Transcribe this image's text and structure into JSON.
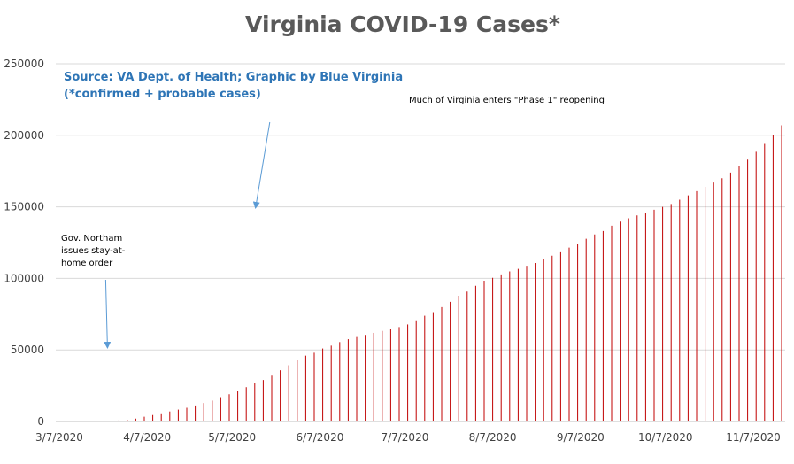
{
  "chart_data": {
    "type": "bar",
    "title": "Virginia COVID-19 Cases*",
    "source_lines": [
      "Source: VA Dept. of Health; Graphic by Blue Virginia",
      "(*confirmed + probable cases)"
    ],
    "xlabel": "",
    "ylabel": "",
    "ylim": [
      0,
      250000
    ],
    "y_ticks": [
      0,
      50000,
      100000,
      150000,
      200000,
      250000
    ],
    "y_tick_labels": [
      "0",
      "50000",
      "100000",
      "150000",
      "200000",
      "250000"
    ],
    "x_range": [
      "2020-03-07",
      "2020-11-17"
    ],
    "x_tick_labels": [
      "3/7/2020",
      "4/7/2020",
      "5/7/2020",
      "6/7/2020",
      "7/7/2020",
      "8/7/2020",
      "9/7/2020",
      "10/7/2020",
      "11/7/2020"
    ],
    "grid": true,
    "bar_color": "#c00000",
    "series": [
      {
        "x": [
          "2020-03-07",
          "2020-03-10",
          "2020-03-13",
          "2020-03-16",
          "2020-03-19",
          "2020-03-22",
          "2020-03-25",
          "2020-03-28",
          "2020-03-31",
          "2020-04-03",
          "2020-04-06",
          "2020-04-09",
          "2020-04-12",
          "2020-04-15",
          "2020-04-18",
          "2020-04-21",
          "2020-04-24",
          "2020-04-27",
          "2020-04-30",
          "2020-05-03",
          "2020-05-06",
          "2020-05-09",
          "2020-05-12",
          "2020-05-15",
          "2020-05-18",
          "2020-05-21",
          "2020-05-24",
          "2020-05-27",
          "2020-05-30",
          "2020-06-02",
          "2020-06-05",
          "2020-06-08",
          "2020-06-11",
          "2020-06-14",
          "2020-06-17",
          "2020-06-20",
          "2020-06-23",
          "2020-06-26",
          "2020-06-29",
          "2020-07-02",
          "2020-07-05",
          "2020-07-08",
          "2020-07-11",
          "2020-07-14",
          "2020-07-17",
          "2020-07-20",
          "2020-07-23",
          "2020-07-26",
          "2020-07-29",
          "2020-08-01",
          "2020-08-04",
          "2020-08-07",
          "2020-08-10",
          "2020-08-13",
          "2020-08-16",
          "2020-08-19",
          "2020-08-22",
          "2020-08-25",
          "2020-08-28",
          "2020-08-31",
          "2020-09-03",
          "2020-09-06",
          "2020-09-09",
          "2020-09-12",
          "2020-09-15",
          "2020-09-18",
          "2020-09-21",
          "2020-09-24",
          "2020-09-27",
          "2020-09-30",
          "2020-10-03",
          "2020-10-06",
          "2020-10-09",
          "2020-10-12",
          "2020-10-15",
          "2020-10-18",
          "2020-10-21",
          "2020-10-24",
          "2020-10-27",
          "2020-10-30",
          "2020-11-02",
          "2020-11-05",
          "2020-11-08",
          "2020-11-11",
          "2020-11-14",
          "2020-11-17"
        ],
        "values": [
          2,
          8,
          30,
          60,
          100,
          250,
          400,
          700,
          1200,
          2000,
          3300,
          4500,
          5700,
          7000,
          8300,
          9600,
          11200,
          12900,
          14600,
          17000,
          19000,
          21600,
          24000,
          26900,
          29000,
          32000,
          35800,
          39300,
          42700,
          46000,
          48000,
          51000,
          53000,
          55500,
          57500,
          59000,
          60500,
          61900,
          63300,
          64600,
          66000,
          67800,
          70700,
          73900,
          76400,
          79900,
          83600,
          87900,
          90800,
          94800,
          98400,
          100400,
          102800,
          104900,
          106700,
          108800,
          110800,
          113400,
          115900,
          118300,
          121500,
          124400,
          127700,
          130700,
          133100,
          136800,
          139700,
          142000,
          144000,
          146000,
          148000,
          150000,
          152000,
          155000,
          158000,
          161000,
          164000,
          167000,
          170000,
          174000,
          178500,
          183000,
          188500,
          194000,
          200000,
          207000
        ]
      }
    ],
    "annotations": [
      {
        "date": "2020-03-24",
        "lines": [
          "Gov. Northam",
          "issues stay-at-",
          "home order"
        ]
      },
      {
        "date": "2020-05-15",
        "lines": [
          "Much of Virginia enters \"Phase 1\" reopening"
        ]
      }
    ]
  }
}
